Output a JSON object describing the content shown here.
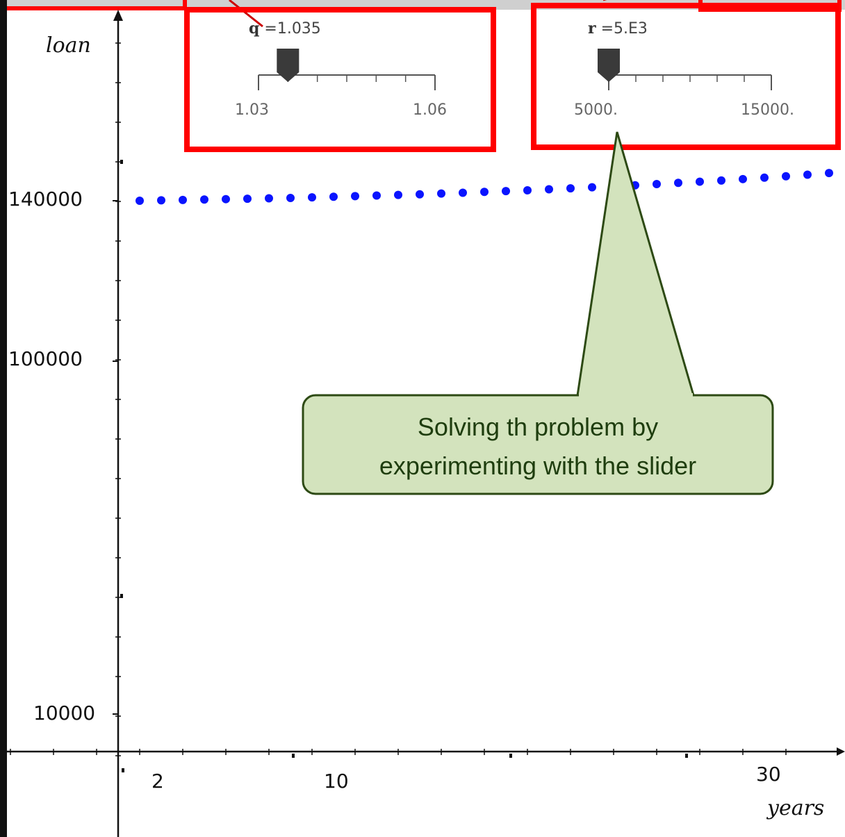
{
  "graph": {
    "x_axis_name": "years",
    "y_axis_name": "loan",
    "x_tick_labels": [
      "2",
      "10",
      "30"
    ],
    "y_tick_labels": [
      "140000",
      "100000",
      "10000"
    ]
  },
  "sliders": [
    {
      "variable": "q",
      "display": "=1.035",
      "min_label": "1.03",
      "max_label": "1.06",
      "value": 1.035,
      "min": 1.03,
      "max": 1.06
    },
    {
      "variable": "r",
      "display": "=5.E3",
      "min_label": "5000.",
      "max_label": "15000.",
      "value": 5000,
      "min": 5000,
      "max": 15000
    }
  ],
  "callout": {
    "line1": "Solving th problem by",
    "line2": "experimenting with the slider"
  },
  "colors": {
    "highlight": "#ff0000",
    "points": "#0a14ff",
    "callout_fill": "#d3e3bd",
    "callout_border": "#2d4a14"
  },
  "chart_data": {
    "type": "scatter",
    "x_label": "years",
    "y_label": "loan",
    "x_ticks": [
      2,
      10,
      30
    ],
    "y_ticks": [
      10000,
      100000,
      140000
    ],
    "series": [
      {
        "x": [
          1,
          2,
          3,
          4,
          5,
          6,
          7,
          8,
          9,
          10,
          11,
          12,
          13,
          14,
          15,
          16,
          17,
          18,
          19,
          20,
          21,
          22,
          23,
          24,
          25,
          26,
          27,
          28,
          29,
          30,
          31,
          32,
          33
        ],
        "y": [
          140000,
          139900,
          139800,
          139700,
          139600,
          139500,
          139400,
          139300,
          139150,
          139000,
          138850,
          138700,
          138550,
          138400,
          138200,
          138000,
          137800,
          137600,
          137400,
          137150,
          136900,
          136650,
          136400,
          136150,
          135850,
          135550,
          135250,
          134950,
          134600,
          134250,
          133900,
          133500,
          133100
        ]
      }
    ]
  }
}
